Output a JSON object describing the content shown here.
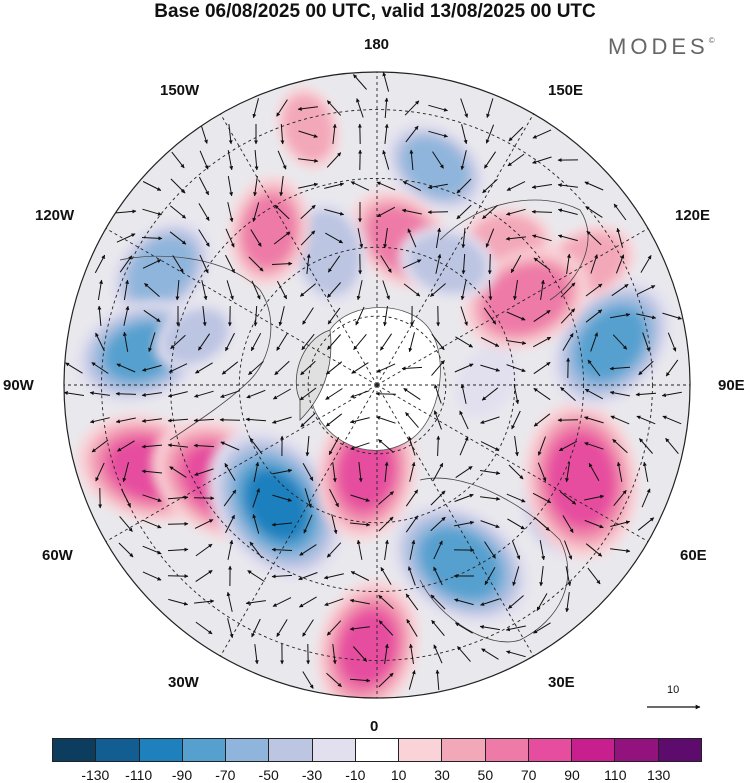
{
  "title": "Base 06/08/2025 00 UTC, valid 13/08/2025 00 UTC",
  "logo": "MODES",
  "logo_mark": "©",
  "longitude_labels": {
    "top": "180",
    "bottom": "0",
    "left": "90W",
    "right": "90E",
    "upper_left_1": "150W",
    "upper_left_2": "120W",
    "upper_right_1": "150E",
    "upper_right_2": "120E",
    "lower_left_1": "60W",
    "lower_left_2": "30W",
    "lower_right_1": "60E",
    "lower_right_2": "30E"
  },
  "reference_vector": "10",
  "colorbar": {
    "colors": [
      "#0d3d5e",
      "#125d92",
      "#1f80be",
      "#56a0cf",
      "#8fb5dc",
      "#bcc5e2",
      "#e2e0ef",
      "#ffffff",
      "#f9d3d8",
      "#f3a8b9",
      "#ee7aa7",
      "#e64d9f",
      "#c81f8e",
      "#93137e",
      "#5d0c6e"
    ],
    "ticks": [
      "-130",
      "-110",
      "-90",
      "-70",
      "-50",
      "-30",
      "-10",
      "10",
      "30",
      "50",
      "70",
      "90",
      "110",
      "130"
    ]
  },
  "anomaly_centers": [
    {
      "angle_deg": 165,
      "r": 0.72,
      "value": -50
    },
    {
      "angle_deg": 138,
      "r": 0.62,
      "value": 35
    },
    {
      "angle_deg": 170,
      "r": 0.47,
      "value": 55
    },
    {
      "angle_deg": 200,
      "r": 0.45,
      "value": -45
    },
    {
      "angle_deg": 215,
      "r": 0.6,
      "value": 50
    },
    {
      "angle_deg": 242,
      "r": 0.78,
      "value": -55
    },
    {
      "angle_deg": 262,
      "r": 0.76,
      "value": -70
    },
    {
      "angle_deg": 255,
      "r": 0.6,
      "value": -30
    },
    {
      "angle_deg": 290,
      "r": 0.78,
      "value": 75
    },
    {
      "angle_deg": 302,
      "r": 0.58,
      "value": 80
    },
    {
      "angle_deg": 320,
      "r": 0.5,
      "value": -90
    },
    {
      "angle_deg": 353,
      "r": 0.28,
      "value": 70
    },
    {
      "angle_deg": 358,
      "r": 0.84,
      "value": 70
    },
    {
      "angle_deg": 25,
      "r": 0.63,
      "value": -80
    },
    {
      "angle_deg": 55,
      "r": 0.7,
      "value": -40
    },
    {
      "angle_deg": 65,
      "r": 0.72,
      "value": 85
    },
    {
      "angle_deg": 100,
      "r": 0.76,
      "value": -75
    },
    {
      "angle_deg": 92,
      "r": 0.35,
      "value": -25
    },
    {
      "angle_deg": 120,
      "r": 0.78,
      "value": 40
    },
    {
      "angle_deg": 120,
      "r": 0.55,
      "value": 65
    },
    {
      "angle_deg": 150,
      "r": 0.45,
      "value": -40
    },
    {
      "angle_deg": 195,
      "r": 0.85,
      "value": 30
    }
  ]
}
